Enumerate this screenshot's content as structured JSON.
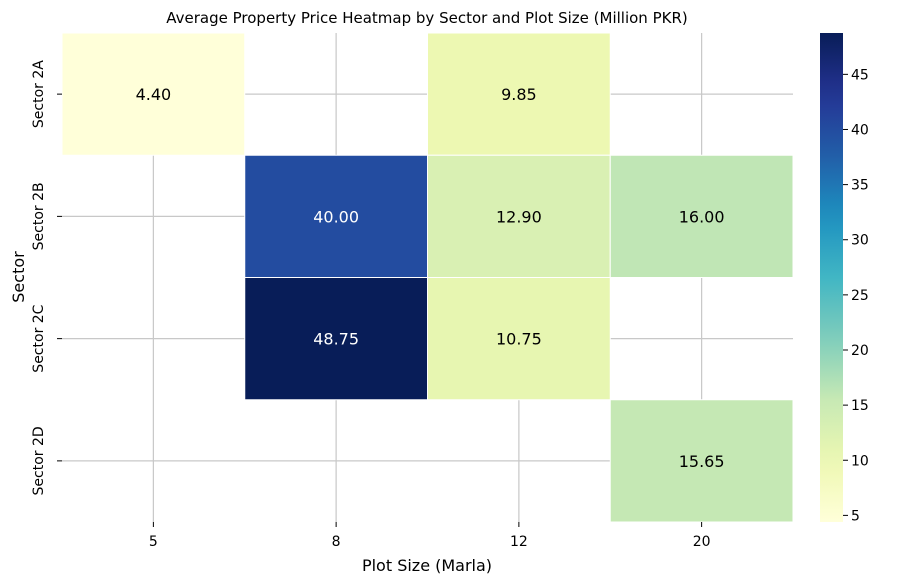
{
  "chart_data": {
    "type": "heatmap",
    "title": "Average Property Price Heatmap by Sector and Plot Size (Million PKR)",
    "xlabel": "Plot Size (Marla)",
    "ylabel": "Sector",
    "x_categories": [
      "5",
      "8",
      "12",
      "20"
    ],
    "y_categories": [
      "Sector 2A",
      "Sector 2B",
      "Sector 2C",
      "Sector 2D"
    ],
    "values": [
      [
        4.4,
        null,
        9.85,
        null
      ],
      [
        null,
        40.0,
        12.9,
        16.0
      ],
      [
        null,
        48.75,
        10.75,
        null
      ],
      [
        null,
        null,
        null,
        15.65
      ]
    ],
    "cell_labels": [
      [
        "4.40",
        "",
        "9.85",
        ""
      ],
      [
        "",
        "40.00",
        "12.90",
        "16.00"
      ],
      [
        "",
        "48.75",
        "10.75",
        ""
      ],
      [
        "",
        "",
        "",
        "15.65"
      ]
    ],
    "colormap": "YlGnBu",
    "colorbar": {
      "ticks": [
        5,
        10,
        15,
        20,
        25,
        30,
        35,
        40,
        45
      ],
      "range": [
        4.4,
        48.75
      ]
    },
    "grid": true,
    "colors": {
      "grid": "#c8c8c8",
      "cell_border": "#ffffff",
      "background": "#ffffff"
    }
  }
}
